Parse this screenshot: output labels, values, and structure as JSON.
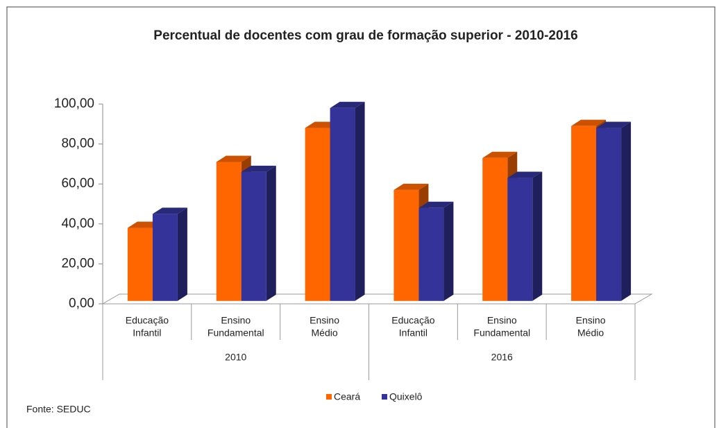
{
  "chart_data": {
    "type": "bar3d",
    "title": "Percentual de docentes com grau de formação superior  - 2010-2016",
    "categories": [
      [
        "Educação",
        "Infantil"
      ],
      [
        "Ensino",
        "Fundamental"
      ],
      [
        "Ensino",
        "Médio"
      ],
      [
        "Educação",
        "Infantil"
      ],
      [
        "Ensino",
        "Fundamental"
      ],
      [
        "Ensino",
        "Médio"
      ]
    ],
    "groups": [
      "2010",
      "2016"
    ],
    "series": [
      {
        "name": "Ceará",
        "color": "#ff6600",
        "values": [
          38,
          71,
          88,
          57,
          73,
          89
        ]
      },
      {
        "name": "Quixelô",
        "color": "#333399",
        "values": [
          45,
          66,
          98,
          48,
          63,
          88
        ]
      }
    ],
    "ylim": [
      0,
      100
    ],
    "yticks": [
      {
        "value": 0,
        "label": "0,00"
      },
      {
        "value": 20,
        "label": "20,00"
      },
      {
        "value": 40,
        "label": "40,00"
      },
      {
        "value": 60,
        "label": "60,00"
      },
      {
        "value": 80,
        "label": "80,00"
      },
      {
        "value": 100,
        "label": "100,00"
      }
    ],
    "legend": "bottom",
    "source": "Fonte: SEDUC"
  }
}
